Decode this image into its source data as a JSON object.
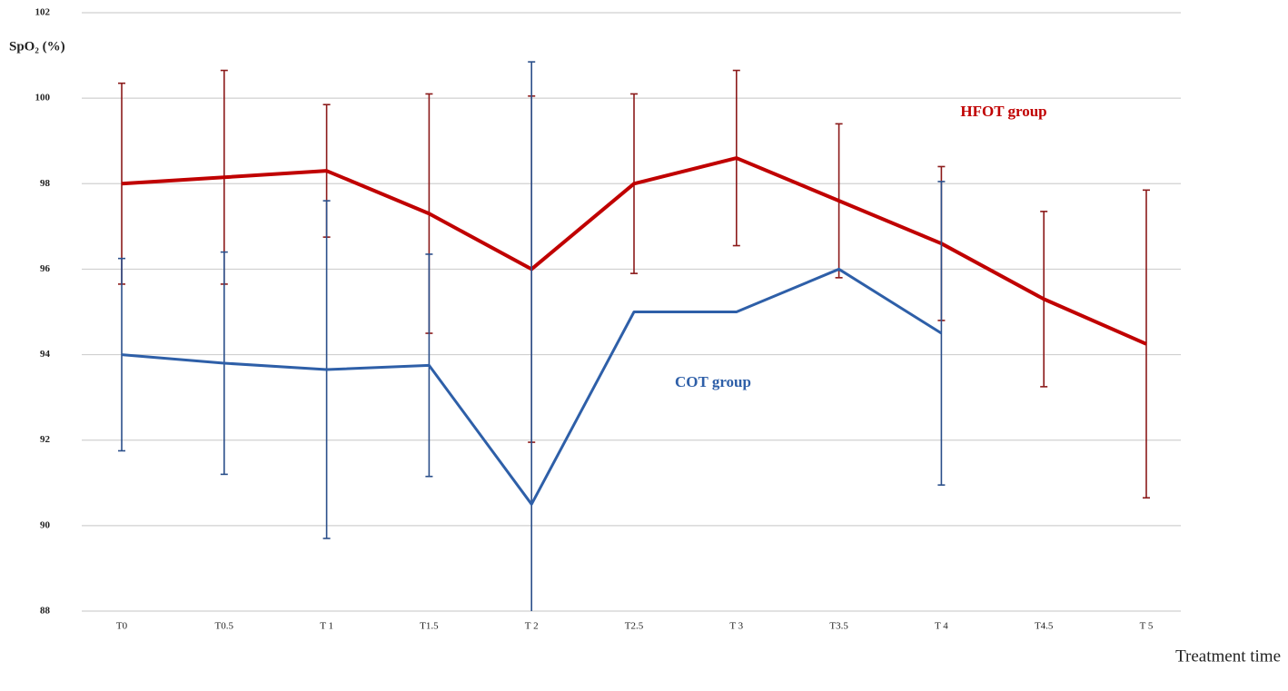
{
  "chart_data": {
    "type": "line",
    "y_label": "SpO₂ (%)",
    "x_label": "Treatment time",
    "categories": [
      "T0",
      "T0.5",
      "T 1",
      "T1.5",
      "T 2",
      "T2.5",
      "T 3",
      "T3.5",
      "T 4",
      "T4.5",
      "T 5"
    ],
    "ylim": [
      88,
      102
    ],
    "yticks": [
      88,
      90,
      92,
      94,
      96,
      98,
      100,
      102
    ],
    "grid": true,
    "series": [
      {
        "name": "HFOT group",
        "color": "#c00000",
        "error_color": "#8b1a1a",
        "values": [
          98.0,
          98.15,
          98.3,
          97.3,
          96.0,
          98.0,
          98.6,
          97.6,
          96.6,
          95.3,
          94.25
        ],
        "errors": [
          2.35,
          2.5,
          1.55,
          2.8,
          4.05,
          2.1,
          2.05,
          1.8,
          1.8,
          2.05,
          3.6
        ]
      },
      {
        "name": "COT group",
        "color": "#2e5fa8",
        "error_color": "#2b4f8a",
        "values": [
          94.0,
          93.8,
          93.65,
          93.75,
          90.5,
          95.0,
          95.0,
          96.0,
          94.5,
          null,
          null
        ],
        "errors": [
          2.25,
          2.6,
          3.95,
          2.6,
          10.35,
          null,
          null,
          null,
          3.55,
          null,
          null
        ]
      }
    ]
  }
}
